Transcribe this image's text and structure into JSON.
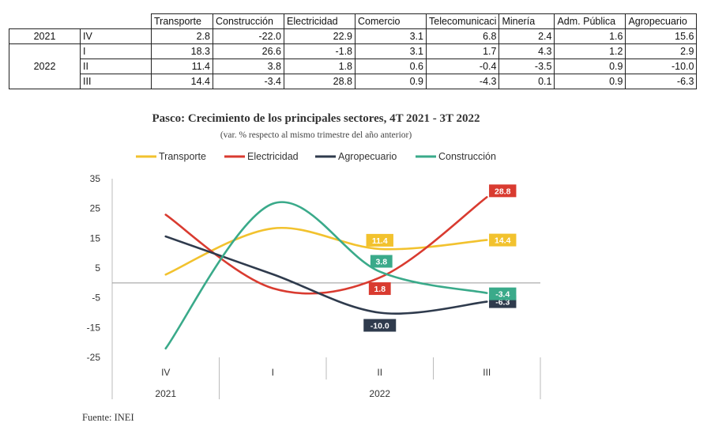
{
  "table": {
    "columns": [
      "Transporte",
      "Construcción",
      "Electricidad",
      "Comercio",
      "Telecomunicaci",
      "Minería",
      "Adm. Pública",
      "Agropecuario"
    ],
    "rows": [
      {
        "year": "2021",
        "quarter": "IV",
        "values": [
          "2.8",
          "-22.0",
          "22.9",
          "3.1",
          "6.8",
          "2.4",
          "1.6",
          "15.6"
        ]
      },
      {
        "year": "2022",
        "quarter": "I",
        "values": [
          "18.3",
          "26.6",
          "-1.8",
          "3.1",
          "1.7",
          "4.3",
          "1.2",
          "2.9"
        ]
      },
      {
        "year": "",
        "quarter": "II",
        "values": [
          "11.4",
          "3.8",
          "1.8",
          "0.6",
          "-0.4",
          "-3.5",
          "0.9",
          "-10.0"
        ]
      },
      {
        "year": "",
        "quarter": "III",
        "values": [
          "14.4",
          "-3.4",
          "28.8",
          "0.9",
          "-4.3",
          "0.1",
          "0.9",
          "-6.3"
        ]
      }
    ]
  },
  "chart_data": {
    "type": "line",
    "title": "Pasco: Crecimiento de los principales sectores, 4T 2021 - 3T 2022",
    "subtitle": "(var. % respecto al mismo trimestre del año anterior)",
    "categories": [
      "IV",
      "I",
      "II",
      "III"
    ],
    "year_groups": [
      {
        "label": "2021",
        "span": [
          0,
          0
        ]
      },
      {
        "label": "2022",
        "span": [
          1,
          3
        ]
      }
    ],
    "y_ticks": [
      "35",
      "25",
      "15",
      "5",
      "-5",
      "-15",
      "-25"
    ],
    "ylim": [
      -25,
      35
    ],
    "series": [
      {
        "name": "Transporte",
        "color": "#f2c22e",
        "values": [
          2.8,
          18.3,
          11.4,
          14.4
        ],
        "labels": [
          "",
          "",
          "11.4",
          "14.4"
        ]
      },
      {
        "name": "Electricidad",
        "color": "#d93b30",
        "values": [
          22.9,
          -1.8,
          1.8,
          28.8
        ],
        "labels": [
          "",
          "",
          "1.8",
          "28.8"
        ]
      },
      {
        "name": "Agropecuario",
        "color": "#2f3b4d",
        "values": [
          15.6,
          2.9,
          -10.0,
          -6.3
        ],
        "labels": [
          "",
          "",
          "-10.0",
          "-6.3"
        ]
      },
      {
        "name": "Construcción",
        "color": "#3aaa8a",
        "values": [
          -22.0,
          26.6,
          3.8,
          -3.4
        ],
        "labels": [
          "",
          "",
          "3.8",
          "-3.4"
        ]
      }
    ]
  },
  "source": "Fuente: INEI"
}
